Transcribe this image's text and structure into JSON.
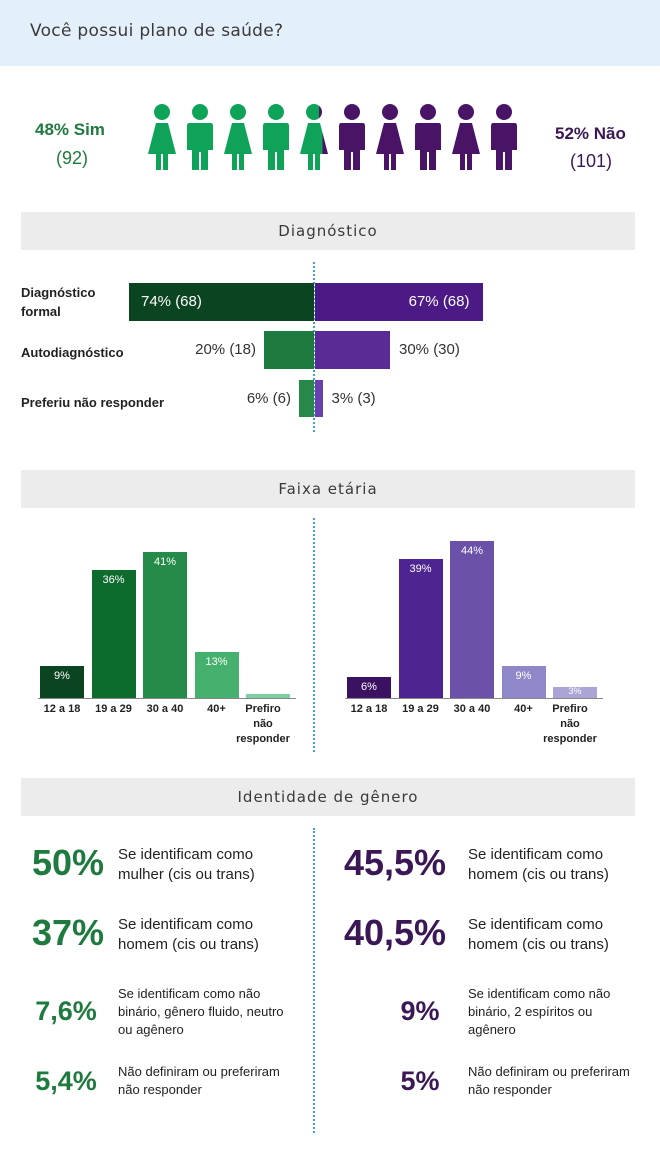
{
  "header": {
    "title": "Você possui plano de saúde?"
  },
  "summary": {
    "yes": {
      "pct_label": "48% Sim",
      "count_label": "(92)",
      "share": 0.48,
      "color": "#0fa35a"
    },
    "no": {
      "pct_label": "52% Não",
      "count_label": "(101)",
      "share": 0.52,
      "color": "#4a1466"
    }
  },
  "sections": {
    "diagnostico": "Diagnóstico",
    "faixa": "Faixa etária",
    "identidade": "Identidade de gênero"
  },
  "chart_data": [
    {
      "type": "bar",
      "orientation": "horizontal-diverging",
      "categories": [
        "Diagnóstico formal",
        "Autodiagnóstico",
        "Preferiu não responder"
      ],
      "series": [
        {
          "values": [
            74,
            20,
            6
          ],
          "labels": [
            "74% (68)",
            "20% (18)",
            "6% (6)"
          ],
          "colors": [
            "#0b4420",
            "#1e7a3e",
            "#27884a"
          ]
        },
        {
          "values": [
            67,
            30,
            3
          ],
          "labels": [
            "67% (68)",
            "30% (30)",
            "3% (3)"
          ],
          "colors": [
            "#4c1a86",
            "#5a2a96",
            "#6a3fb0"
          ]
        }
      ]
    },
    {
      "type": "bar",
      "categories": [
        "12 a 18",
        "19 a 29",
        "30 a 40",
        "40+",
        "Prefiro não responder"
      ],
      "values": [
        9,
        36,
        41,
        13,
        1
      ],
      "labels": [
        "9%",
        "36%",
        "41%",
        "13%",
        ""
      ],
      "colors": [
        "#0b4420",
        "#0e6b2e",
        "#258b48",
        "#46b06e",
        "#7fd0a3"
      ]
    },
    {
      "type": "bar",
      "categories": [
        "12 a 18",
        "19 a 29",
        "30 a 40",
        "40+",
        "Prefiro não responder"
      ],
      "values": [
        6,
        39,
        44,
        9,
        3
      ],
      "labels": [
        "6%",
        "39%",
        "44%",
        "9%",
        "3%"
      ],
      "colors": [
        "#3b1262",
        "#4e2590",
        "#6b52a8",
        "#8e88c8",
        "#aaa5d6"
      ]
    }
  ],
  "gender": {
    "left": [
      {
        "pct": "50%",
        "text": "Se identificam como mulher (cis ou trans)"
      },
      {
        "pct": "37%",
        "text": "Se identificam como homem (cis ou trans)"
      },
      {
        "pct": "7,6%",
        "text": "Se identificam como não binário, gênero fluido, neutro ou agênero"
      },
      {
        "pct": "5,4%",
        "text": "Não definiram ou preferiram não responder"
      }
    ],
    "right": [
      {
        "pct": "45,5%",
        "text": "Se identificam como homem (cis ou trans)"
      },
      {
        "pct": "40,5%",
        "text": "Se identificam como homem (cis ou trans)"
      },
      {
        "pct": "9%",
        "text": "Se identificam como não binário, 2 espíritos ou agênero"
      },
      {
        "pct": "5%",
        "text": "Não definiram ou preferiram não responder"
      }
    ]
  }
}
